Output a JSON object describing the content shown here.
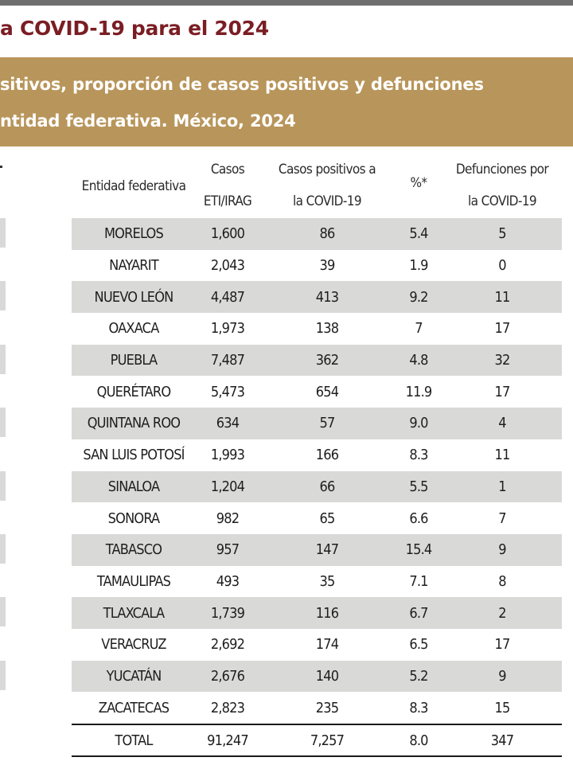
{
  "title": "a COVID-19 para el 2024",
  "banner": {
    "line1": "sitivos, proporción de casos positivos  y defunciones",
    "line2": "ntidad federativa. México, 2024"
  },
  "table": {
    "headers": {
      "entidad": "Entidad federativa",
      "casos_l1": "Casos",
      "casos_l2": "ETI/IRAG",
      "positivos_l1": "Casos positivos a",
      "positivos_l2": "la COVID-19",
      "pct": "%*",
      "defunciones_l1": "Defunciones por",
      "defunciones_l2": "la COVID-19"
    },
    "rows": [
      {
        "entidad": "MORELOS",
        "casos": "1,600",
        "positivos": "86",
        "pct": "5.4",
        "defunciones": "5"
      },
      {
        "entidad": "NAYARIT",
        "casos": "2,043",
        "positivos": "39",
        "pct": "1.9",
        "defunciones": "0"
      },
      {
        "entidad": "NUEVO LEÓN",
        "casos": "4,487",
        "positivos": "413",
        "pct": "9.2",
        "defunciones": "11"
      },
      {
        "entidad": "OAXACA",
        "casos": "1,973",
        "positivos": "138",
        "pct": "7",
        "defunciones": "17"
      },
      {
        "entidad": "PUEBLA",
        "casos": "7,487",
        "positivos": "362",
        "pct": "4.8",
        "defunciones": "32"
      },
      {
        "entidad": "QUERÉTARO",
        "casos": "5,473",
        "positivos": "654",
        "pct": "11.9",
        "defunciones": "17"
      },
      {
        "entidad": "QUINTANA ROO",
        "casos": "634",
        "positivos": "57",
        "pct": "9.0",
        "defunciones": "4"
      },
      {
        "entidad": "SAN LUIS POTOSÍ",
        "casos": "1,993",
        "positivos": "166",
        "pct": "8.3",
        "defunciones": "11"
      },
      {
        "entidad": "SINALOA",
        "casos": "1,204",
        "positivos": "66",
        "pct": "5.5",
        "defunciones": "1"
      },
      {
        "entidad": "SONORA",
        "casos": "982",
        "positivos": "65",
        "pct": "6.6",
        "defunciones": "7"
      },
      {
        "entidad": "TABASCO",
        "casos": "957",
        "positivos": "147",
        "pct": "15.4",
        "defunciones": "9"
      },
      {
        "entidad": "TAMAULIPAS",
        "casos": "493",
        "positivos": "35",
        "pct": "7.1",
        "defunciones": "8"
      },
      {
        "entidad": "TLAXCALA",
        "casos": "1,739",
        "positivos": "116",
        "pct": "6.7",
        "defunciones": "2"
      },
      {
        "entidad": "VERACRUZ",
        "casos": "2,692",
        "positivos": "174",
        "pct": "6.5",
        "defunciones": "17"
      },
      {
        "entidad": "YUCATÁN",
        "casos": "2,676",
        "positivos": "140",
        "pct": "5.2",
        "defunciones": "9"
      },
      {
        "entidad": "ZACATECAS",
        "casos": "2,823",
        "positivos": "235",
        "pct": "8.3",
        "defunciones": "15"
      }
    ],
    "total": {
      "entidad": "TOTAL",
      "casos": "91,247",
      "positivos": "7,257",
      "pct": "8.0",
      "defunciones": "347"
    }
  },
  "colors": {
    "title": "#7a1e24",
    "banner": "#b8955a",
    "row_shade": "#d9d9d7"
  }
}
